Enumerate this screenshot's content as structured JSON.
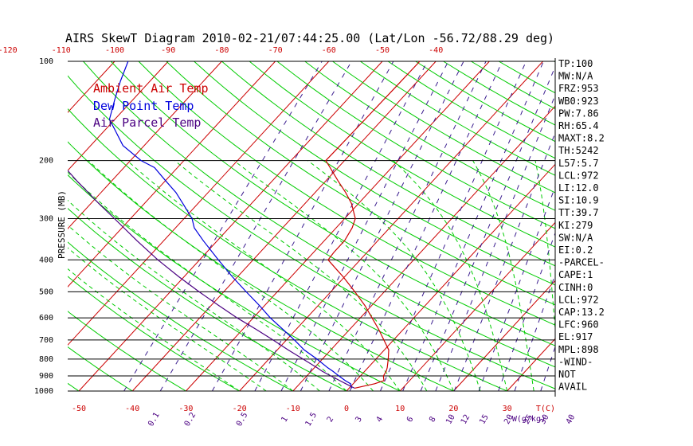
{
  "title": "AIRS SkewT Diagram 2010-02-21/07:44:25.00 (Lat/Lon -56.72/88.29 deg)",
  "colors": {
    "ambient": "#cc0000",
    "dewpoint": "#0000dd",
    "parcel": "#4b0082",
    "isotherm": "#cc0000",
    "dry_adiabat": "#00cc00",
    "moist_adiabat": "#00cc00",
    "mixing_ratio": "#3b1d8f",
    "isobar": "#000000"
  },
  "legend": {
    "ambient": "Ambient Air Temp",
    "dewpoint": "Dew Point Temp",
    "parcel": "Air Parcel Temp"
  },
  "stats": [
    "TP:100",
    "MW:N/A",
    "FRZ:953",
    "WB0:923",
    "PW:7.86",
    "RH:65.4",
    "MAXT:8.2",
    "TH:5242",
    "L57:5.7",
    "LCL:972",
    "LI:12.0",
    "SI:10.9",
    "TT:39.7",
    "KI:279",
    "SW:N/A",
    "EI:0.2",
    "-PARCEL-",
    "CAPE:1",
    "CINH:0",
    "LCL:972",
    "CAP:13.2",
    "LFC:960",
    "EL:917",
    "MPL:898",
    "-WIND-",
    "NOT",
    "AVAIL"
  ],
  "chart_data": {
    "type": "line",
    "title": "AIRS SkewT Diagram 2010-02-21/07:44:25.00 (Lat/Lon -56.72/88.29 deg)",
    "ylabel": "PRESSURE (MB)",
    "xlabel": "T(C)",
    "mixing_ratio_label": "W(g/kg)",
    "y_scale": "log",
    "ylim": [
      1000,
      100
    ],
    "pressure_ticks": [
      100,
      200,
      300,
      400,
      500,
      600,
      700,
      800,
      900,
      1000
    ],
    "isobars": [
      100,
      200,
      300,
      400,
      500,
      600,
      700,
      800,
      900,
      1000
    ],
    "top_temp_ticks": [
      -120,
      -110,
      -100,
      -90,
      -80,
      -70,
      -60,
      -50,
      -40
    ],
    "bottom_temp_ticks": [
      -50,
      -40,
      -30,
      -20,
      -10,
      0,
      10,
      20,
      30
    ],
    "isotherms": [
      -150,
      -140,
      -130,
      -120,
      -110,
      -100,
      -90,
      -80,
      -70,
      -60,
      -50,
      -40,
      -30,
      -20,
      -10,
      0,
      10,
      20,
      30,
      40
    ],
    "dry_adiabats_theta_c": [
      -50,
      -40,
      -30,
      -20,
      -10,
      0,
      10,
      20,
      30,
      40,
      50,
      60,
      70,
      80,
      90,
      100,
      110,
      120,
      130,
      140,
      150,
      160,
      170,
      180,
      190,
      200,
      220,
      240
    ],
    "moist_adiabats_c": [
      -20,
      -15,
      -10,
      -5,
      0,
      5,
      10,
      15,
      20,
      25,
      30,
      35,
      40
    ],
    "mixing_ratio_labels": [
      "0.1",
      "0.2",
      "0.5",
      "1",
      "1.5",
      "2",
      "3",
      "4",
      "6",
      "8",
      "10",
      "12",
      "15",
      "20",
      "25",
      "30",
      "40"
    ],
    "mixing_ratio_values": [
      0.1,
      0.2,
      0.5,
      1,
      1.5,
      2,
      3,
      4,
      6,
      8,
      10,
      12,
      15,
      20,
      25,
      30,
      40
    ],
    "series": [
      {
        "name": "Ambient Air Temp",
        "pressure": [
          980,
          950,
          930,
          900,
          870,
          850,
          800,
          750,
          700,
          650,
          600,
          550,
          500,
          450,
          430,
          400,
          380,
          350,
          320,
          300,
          270,
          250,
          230,
          210,
          200,
          180,
          160,
          140,
          120,
          100
        ],
        "temp": [
          1.0,
          4.0,
          5.2,
          4.3,
          4.0,
          3.6,
          2.3,
          0.8,
          -1.8,
          -4.6,
          -7.8,
          -11.3,
          -15.5,
          -20.3,
          -22.5,
          -26.0,
          -26.2,
          -26.2,
          -27.0,
          -28.0,
          -31.3,
          -34.3,
          -37.8,
          -41.5,
          -43.5,
          -43.4,
          -43.3,
          -43.2,
          -43.1,
          -43.0
        ]
      },
      {
        "name": "Dew Point Temp",
        "pressure": [
          980,
          950,
          930,
          900,
          870,
          850,
          800,
          750,
          700,
          650,
          600,
          550,
          500,
          450,
          400,
          350,
          320,
          300,
          270,
          250,
          230,
          210,
          200,
          180,
          160,
          150,
          130,
          115,
          100
        ],
        "temp": [
          0.5,
          -0.5,
          -2.0,
          -4.0,
          -6.0,
          -7.5,
          -11.0,
          -15.0,
          -18.5,
          -22.5,
          -26.8,
          -31.0,
          -35.8,
          -41.0,
          -46.5,
          -52.6,
          -56.5,
          -58.5,
          -62.8,
          -66.0,
          -70.0,
          -74.3,
          -78.0,
          -84.0,
          -88.5,
          -91.0,
          -93.5,
          -95.5,
          -97.5
        ]
      },
      {
        "name": "Air Parcel Temp",
        "pressure": [
          980,
          950,
          930,
          900,
          870,
          850,
          800,
          750,
          700,
          650,
          600,
          550,
          500,
          450,
          400,
          350,
          300,
          270,
          250,
          230,
          210,
          200,
          180,
          160,
          140,
          120,
          100
        ],
        "temp": [
          1.0,
          -1.4,
          -3.0,
          -5.5,
          -8.0,
          -9.5,
          -13.6,
          -18.0,
          -22.5,
          -27.5,
          -33.0,
          -38.6,
          -44.6,
          -51.0,
          -57.8,
          -65.0,
          -73.0,
          -78.5,
          -82.4,
          -86.6,
          -91.0,
          -93.5,
          -98.5,
          -104.0,
          -110.0,
          -116.5,
          -123.5
        ]
      }
    ]
  }
}
